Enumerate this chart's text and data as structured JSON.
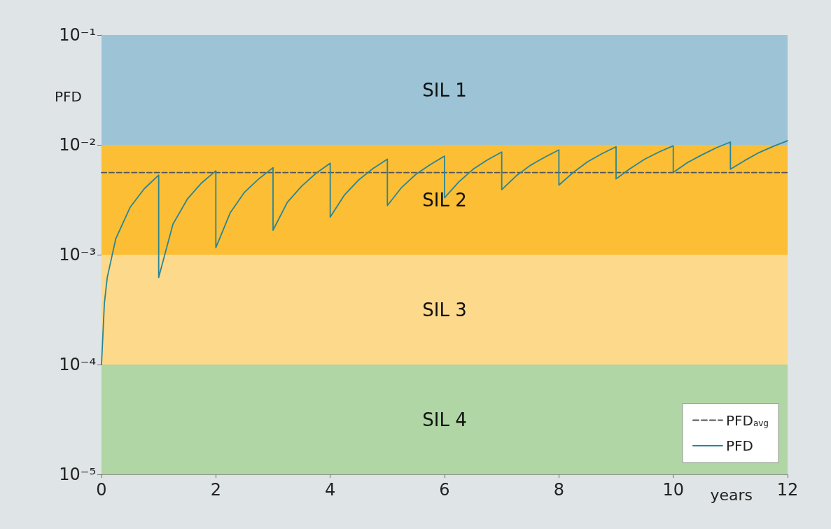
{
  "chart_data": {
    "type": "line",
    "xlabel": "years",
    "ylabel": "PFD",
    "log": "y",
    "xlim": [
      0,
      12
    ],
    "xticks": [
      0,
      2,
      4,
      6,
      8,
      10,
      12
    ],
    "ylim": [
      1e-05,
      0.1
    ],
    "yticks": [
      {
        "value": 0.1,
        "label": "10⁻¹"
      },
      {
        "value": 0.01,
        "label": "10⁻²"
      },
      {
        "value": 0.001,
        "label": "10⁻³"
      },
      {
        "value": 0.0001,
        "label": "10⁻⁴"
      },
      {
        "value": 1e-05,
        "label": "10⁻⁵"
      }
    ],
    "grid": false,
    "legend": "bottom right",
    "marker": "none",
    "bands": [
      {
        "axis": "y",
        "from": 0.01,
        "to": 0.1,
        "label": "SIL 1",
        "color": "#9dc4d6"
      },
      {
        "axis": "y",
        "from": 0.001,
        "to": 0.01,
        "label": "SIL 2",
        "color": "#fbbe35"
      },
      {
        "axis": "y",
        "from": 0.0001,
        "to": 0.001,
        "label": "SIL 3",
        "color": "#fdd98c"
      },
      {
        "axis": "y",
        "from": 1e-05,
        "to": 0.0001,
        "label": "SIL 4",
        "color": "#afd6a4"
      }
    ],
    "series": [
      {
        "name": "PFD$_{avg}$",
        "color": "#555555",
        "line_style": "dashed",
        "x": [
          0,
          12
        ],
        "values": [
          0.0056,
          0.0056
        ]
      },
      {
        "name": "PFD",
        "color": "#2a8595",
        "line_style": "solid",
        "x": [
          0,
          0.05,
          0.1,
          0.25,
          0.5,
          0.75,
          1,
          1,
          1.25,
          1.5,
          1.75,
          2,
          2,
          2.25,
          2.5,
          2.75,
          3,
          3,
          3.25,
          3.5,
          3.75,
          4,
          4,
          4.25,
          4.5,
          4.75,
          5,
          5,
          5.25,
          5.5,
          5.75,
          6,
          6,
          6.25,
          6.5,
          6.75,
          7,
          7,
          7.25,
          7.5,
          7.75,
          8,
          8,
          8.25,
          8.5,
          8.75,
          9,
          9,
          9.25,
          9.5,
          9.75,
          10,
          10,
          10.25,
          10.5,
          10.75,
          11,
          11,
          11.25,
          11.5,
          11.75,
          12
        ],
        "values": [
          0.0001,
          0.00036,
          0.00062,
          0.0014,
          0.0027,
          0.004,
          0.0053,
          0.00062,
          0.0019,
          0.0032,
          0.0045,
          0.0058,
          0.00116,
          0.0024,
          0.0037,
          0.0049,
          0.0062,
          0.00167,
          0.003,
          0.0042,
          0.0055,
          0.0068,
          0.0022,
          0.0035,
          0.0048,
          0.0061,
          0.0074,
          0.0028,
          0.0041,
          0.0054,
          0.0066,
          0.0079,
          0.0033,
          0.0046,
          0.006,
          0.0073,
          0.0086,
          0.0039,
          0.0052,
          0.0065,
          0.0077,
          0.009,
          0.0043,
          0.0056,
          0.007,
          0.0083,
          0.0096,
          0.0049,
          0.0061,
          0.0074,
          0.0086,
          0.0098,
          0.0056,
          0.0069,
          0.0081,
          0.0094,
          0.0106,
          0.006,
          0.0072,
          0.0085,
          0.0097,
          0.0109
        ]
      }
    ]
  }
}
